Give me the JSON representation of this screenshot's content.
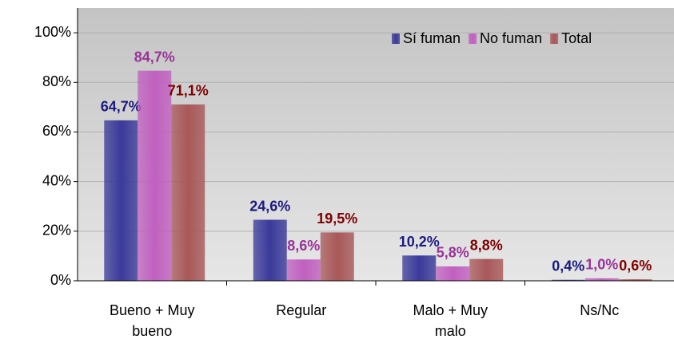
{
  "chart_data": {
    "type": "bar",
    "categories": [
      "Bueno + Muy bueno",
      "Regular",
      "Malo + Muy malo",
      "Ns/Nc"
    ],
    "series": [
      {
        "name": "Sí fuman",
        "color": "#3a3a9a",
        "label_color": "#1a1a80",
        "values": [
          64.7,
          24.6,
          10.2,
          0.4
        ],
        "value_labels": [
          "64,7%",
          "24,6%",
          "10,2%",
          "0,4%"
        ]
      },
      {
        "name": "No fuman",
        "color": "#c060c0",
        "label_color": "#993399",
        "values": [
          84.7,
          8.6,
          5.8,
          1.0
        ],
        "value_labels": [
          "84,7%",
          "8,6%",
          "5,8%",
          "1,0%"
        ]
      },
      {
        "name": "Total",
        "color": "#a85858",
        "label_color": "#800000",
        "values": [
          71.1,
          19.5,
          8.8,
          0.6
        ],
        "value_labels": [
          "71,1%",
          "19,5%",
          "8,8%",
          "0,6%"
        ]
      }
    ],
    "ylim": [
      0,
      110
    ],
    "yticks": [
      {
        "value": 0,
        "label": "0%"
      },
      {
        "value": 20,
        "label": "20%"
      },
      {
        "value": 40,
        "label": "40%"
      },
      {
        "value": 60,
        "label": "60%"
      },
      {
        "value": 80,
        "label": "80%"
      },
      {
        "value": 100,
        "label": "100%"
      }
    ],
    "grid": true,
    "legend": "upper right"
  }
}
